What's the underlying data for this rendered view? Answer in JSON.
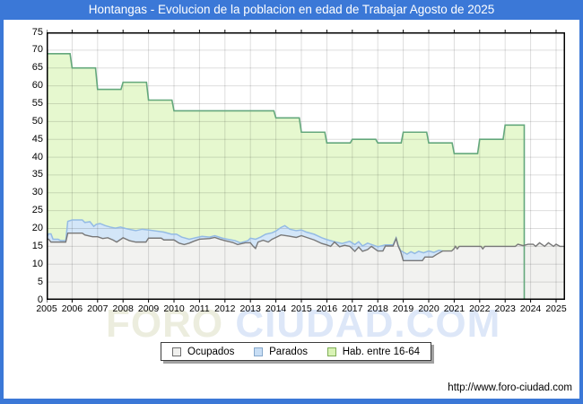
{
  "window": {
    "title": "Hontangas - Evolucion de la poblacion en edad de Trabajar Agosto de 2025",
    "title_bar_color": "#3b78d7",
    "frame_color": "#3b78d7"
  },
  "footer": {
    "url": "http://www.foro-ciudad.com"
  },
  "watermark": {
    "part1": "FORO",
    "part2": " CIUDAD.COM"
  },
  "legend": {
    "items": [
      {
        "label": "Ocupados",
        "swatch_fill": "#f0f0ee",
        "swatch_border": "#6e6e6e"
      },
      {
        "label": "Parados",
        "swatch_fill": "#c8def5",
        "swatch_border": "#87a9cc"
      },
      {
        "label": "Hab. entre 16-64",
        "swatch_fill": "#d9f3b5",
        "swatch_border": "#7fae57"
      }
    ]
  },
  "chart_data": {
    "type": "area",
    "title": "Hontangas - Evolucion de la poblacion en edad de Trabajar Agosto de 2025",
    "x_axis": {
      "domain_start": 2005,
      "domain_end": 2025.35,
      "ticks": [
        "2005",
        "2006",
        "2007",
        "2008",
        "2009",
        "2010",
        "2011",
        "2012",
        "2013",
        "2014",
        "2015",
        "2016",
        "2017",
        "2018",
        "2019",
        "2020",
        "2021",
        "2022",
        "2023",
        "2024",
        "2025"
      ]
    },
    "y_axis": {
      "min": 0,
      "max": 75,
      "step": 5
    },
    "grid": true,
    "legend_position": "bottom-center",
    "series": [
      {
        "name": "Hab. entre 16-64",
        "kind": "step-area",
        "line_color": "#64a87c",
        "fill_color": "#e6f8cf",
        "annual_values": {
          "2005": 69,
          "2006": 65,
          "2007": 59,
          "2008": 61,
          "2009": 56,
          "2010": 53,
          "2011": 53,
          "2012": 53,
          "2013": 53,
          "2014": 51,
          "2015": 47,
          "2016": 44,
          "2017": 45,
          "2018": 44,
          "2019": 47,
          "2020": 44,
          "2021": 41,
          "2022": 45,
          "2023": 49
        },
        "series_end": 2023.75
      },
      {
        "name": "Parados",
        "kind": "area",
        "stacked_on": "Ocupados",
        "line_color": "#94bbe4",
        "fill_color": "#d3e6f8",
        "points": [
          [
            2005.0,
            17.5
          ],
          [
            2005.08,
            18.5
          ],
          [
            2005.17,
            18.5
          ],
          [
            2005.25,
            17.0
          ],
          [
            2005.45,
            17.0
          ],
          [
            2005.55,
            16.6
          ],
          [
            2005.75,
            16.6
          ],
          [
            2005.83,
            22.0
          ],
          [
            2006.0,
            22.4
          ],
          [
            2006.4,
            22.4
          ],
          [
            2006.5,
            21.7
          ],
          [
            2006.7,
            21.9
          ],
          [
            2006.85,
            20.6
          ],
          [
            2006.95,
            21.2
          ],
          [
            2007.1,
            21.4
          ],
          [
            2007.3,
            20.8
          ],
          [
            2007.5,
            20.4
          ],
          [
            2007.7,
            20.1
          ],
          [
            2007.9,
            20.4
          ],
          [
            2008.1,
            20.0
          ],
          [
            2008.3,
            19.7
          ],
          [
            2008.5,
            19.4
          ],
          [
            2008.75,
            19.8
          ],
          [
            2009.0,
            19.6
          ],
          [
            2009.3,
            19.3
          ],
          [
            2009.6,
            19.0
          ],
          [
            2009.9,
            18.4
          ],
          [
            2010.1,
            18.4
          ],
          [
            2010.3,
            17.6
          ],
          [
            2010.6,
            17.0
          ],
          [
            2010.9,
            17.5
          ],
          [
            2011.1,
            17.8
          ],
          [
            2011.4,
            17.6
          ],
          [
            2011.6,
            18.0
          ],
          [
            2011.9,
            17.3
          ],
          [
            2012.1,
            17.0
          ],
          [
            2012.4,
            16.6
          ],
          [
            2012.6,
            16.0
          ],
          [
            2012.9,
            16.6
          ],
          [
            2013.0,
            17.3
          ],
          [
            2013.2,
            17.0
          ],
          [
            2013.4,
            17.6
          ],
          [
            2013.6,
            18.4
          ],
          [
            2013.85,
            18.8
          ],
          [
            2014.0,
            19.3
          ],
          [
            2014.2,
            20.3
          ],
          [
            2014.35,
            20.8
          ],
          [
            2014.55,
            19.8
          ],
          [
            2014.8,
            19.4
          ],
          [
            2015.0,
            19.6
          ],
          [
            2015.2,
            19.0
          ],
          [
            2015.5,
            18.4
          ],
          [
            2015.8,
            17.4
          ],
          [
            2016.0,
            16.9
          ],
          [
            2016.3,
            16.3
          ],
          [
            2016.6,
            15.8
          ],
          [
            2016.9,
            16.4
          ],
          [
            2017.1,
            15.5
          ],
          [
            2017.25,
            16.3
          ],
          [
            2017.4,
            15.1
          ],
          [
            2017.6,
            15.9
          ],
          [
            2017.8,
            15.4
          ],
          [
            2018.0,
            14.9
          ],
          [
            2018.3,
            15.4
          ],
          [
            2018.6,
            15.4
          ],
          [
            2018.72,
            17.4
          ],
          [
            2018.8,
            15.3
          ],
          [
            2018.9,
            13.8
          ],
          [
            2019.0,
            13.4
          ],
          [
            2019.15,
            12.8
          ],
          [
            2019.3,
            13.5
          ],
          [
            2019.45,
            13.0
          ],
          [
            2019.6,
            13.6
          ],
          [
            2019.8,
            13.2
          ],
          [
            2020.0,
            13.7
          ],
          [
            2020.2,
            13.3
          ],
          [
            2020.4,
            13.9
          ],
          [
            2020.55,
            13.7
          ]
        ]
      },
      {
        "name": "Ocupados",
        "kind": "area",
        "line_color": "#787878",
        "fill_color": "#f2f2f0",
        "points": [
          [
            2005.0,
            17.0
          ],
          [
            2005.08,
            17.0
          ],
          [
            2005.17,
            16.2
          ],
          [
            2005.75,
            16.2
          ],
          [
            2005.83,
            18.7
          ],
          [
            2006.4,
            18.7
          ],
          [
            2006.5,
            18.2
          ],
          [
            2006.8,
            17.7
          ],
          [
            2007.0,
            17.7
          ],
          [
            2007.2,
            17.2
          ],
          [
            2007.4,
            17.4
          ],
          [
            2007.6,
            16.8
          ],
          [
            2007.75,
            16.2
          ],
          [
            2008.0,
            17.4
          ],
          [
            2008.25,
            16.6
          ],
          [
            2008.5,
            16.2
          ],
          [
            2008.9,
            16.2
          ],
          [
            2009.0,
            17.3
          ],
          [
            2009.5,
            17.3
          ],
          [
            2009.6,
            16.8
          ],
          [
            2010.0,
            16.8
          ],
          [
            2010.2,
            15.9
          ],
          [
            2010.4,
            15.5
          ],
          [
            2010.6,
            15.9
          ],
          [
            2010.8,
            16.5
          ],
          [
            2011.0,
            17.0
          ],
          [
            2011.4,
            17.2
          ],
          [
            2011.6,
            17.5
          ],
          [
            2011.8,
            17.0
          ],
          [
            2012.0,
            16.6
          ],
          [
            2012.3,
            16.1
          ],
          [
            2012.5,
            15.5
          ],
          [
            2012.8,
            16.0
          ],
          [
            2013.0,
            16.0
          ],
          [
            2013.1,
            15.1
          ],
          [
            2013.2,
            14.4
          ],
          [
            2013.3,
            16.2
          ],
          [
            2013.5,
            16.7
          ],
          [
            2013.7,
            16.2
          ],
          [
            2013.85,
            17.0
          ],
          [
            2014.0,
            17.5
          ],
          [
            2014.2,
            18.2
          ],
          [
            2014.5,
            17.9
          ],
          [
            2014.8,
            17.5
          ],
          [
            2015.0,
            18.0
          ],
          [
            2015.25,
            17.4
          ],
          [
            2015.5,
            16.8
          ],
          [
            2015.8,
            15.8
          ],
          [
            2016.0,
            15.4
          ],
          [
            2016.15,
            15.0
          ],
          [
            2016.3,
            16.2
          ],
          [
            2016.5,
            14.9
          ],
          [
            2016.7,
            15.3
          ],
          [
            2016.9,
            15.0
          ],
          [
            2017.1,
            13.6
          ],
          [
            2017.25,
            14.8
          ],
          [
            2017.4,
            13.6
          ],
          [
            2017.6,
            14.1
          ],
          [
            2017.75,
            15.0
          ],
          [
            2018.0,
            13.7
          ],
          [
            2018.2,
            13.7
          ],
          [
            2018.3,
            15.1
          ],
          [
            2018.6,
            15.1
          ],
          [
            2018.72,
            17.2
          ],
          [
            2018.8,
            15.1
          ],
          [
            2018.9,
            13.5
          ],
          [
            2019.0,
            11.0
          ],
          [
            2019.75,
            11.0
          ],
          [
            2019.85,
            12.0
          ],
          [
            2020.15,
            12.0
          ],
          [
            2020.3,
            12.7
          ],
          [
            2020.55,
            13.7
          ],
          [
            2020.9,
            13.7
          ],
          [
            2021.0,
            14.4
          ],
          [
            2021.05,
            15.0
          ],
          [
            2021.12,
            14.3
          ],
          [
            2021.2,
            15.0
          ],
          [
            2022.05,
            15.0
          ],
          [
            2022.12,
            14.3
          ],
          [
            2022.2,
            15.0
          ],
          [
            2023.4,
            15.0
          ],
          [
            2023.5,
            15.6
          ],
          [
            2023.7,
            15.2
          ],
          [
            2023.9,
            15.6
          ],
          [
            2024.1,
            15.6
          ],
          [
            2024.2,
            15.0
          ],
          [
            2024.35,
            16.0
          ],
          [
            2024.55,
            15.0
          ],
          [
            2024.7,
            16.0
          ],
          [
            2024.9,
            15.0
          ],
          [
            2025.0,
            15.6
          ],
          [
            2025.15,
            15.0
          ],
          [
            2025.35,
            15.0
          ]
        ]
      }
    ]
  }
}
